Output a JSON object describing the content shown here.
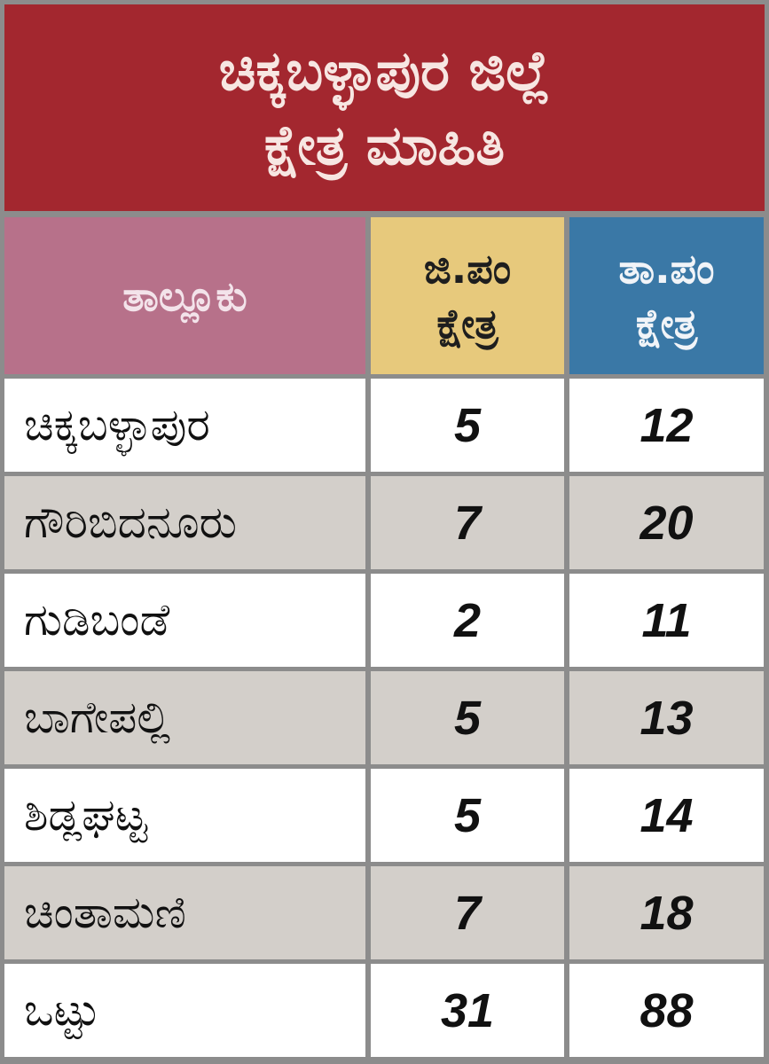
{
  "title": {
    "line1": "ಚಿಕ್ಕಬಳ್ಳಾಪುರ ಜಿಲ್ಲೆ",
    "line2": "ಕ್ಷೇತ್ರ ಮಾಹಿತಿ"
  },
  "headers": {
    "taluk": "ತಾಲ್ಲೂಕು",
    "zp_line1": "ಜಿ.ಪಂ",
    "zp_line2": "ಕ್ಷೇತ್ರ",
    "tp_line1": "ತಾ.ಪಂ",
    "tp_line2": "ಕ್ಷೇತ್ರ"
  },
  "colors": {
    "title_bg": "#a3272f",
    "taluk_header": "#b7718a",
    "zp_header": "#e7c97c",
    "tp_header": "#3a78a6",
    "alt_row": "#d3cfca"
  },
  "rows": [
    {
      "taluk": "ಚಿಕ್ಕಬಳ್ಳಾಪುರ",
      "zp": "5",
      "tp": "12"
    },
    {
      "taluk": "ಗೌರಿಬಿದನೂರು",
      "zp": "7",
      "tp": "20"
    },
    {
      "taluk": "ಗುಡಿಬಂಡೆ",
      "zp": "2",
      "tp": "11"
    },
    {
      "taluk": "ಬಾಗೇಪಲ್ಲಿ",
      "zp": "5",
      "tp": "13"
    },
    {
      "taluk": "ಶಿಡ್ಲಘಟ್ಟ",
      "zp": "5",
      "tp": "14"
    },
    {
      "taluk": "ಚಿಂತಾಮಣಿ",
      "zp": "7",
      "tp": "18"
    },
    {
      "taluk": "ಒಟ್ಟು",
      "zp": "31",
      "tp": "88"
    }
  ]
}
